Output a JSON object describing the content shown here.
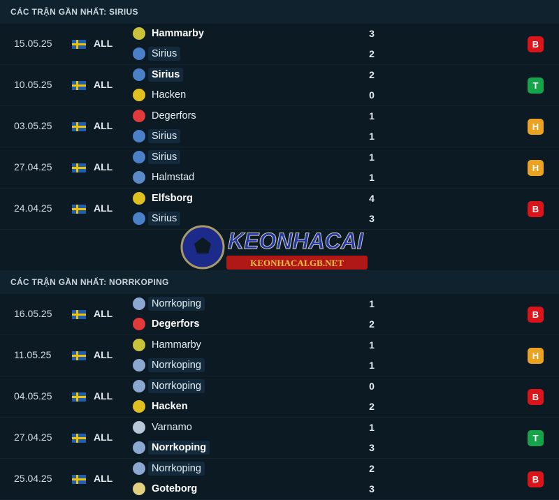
{
  "sections": [
    {
      "title": "CÁC TRẬN GẦN NHẤT: SIRIUS",
      "matches": [
        {
          "date": "15.05.25",
          "competition": "ALL",
          "home": {
            "name": "Hammarby",
            "logo": "#c9c23a",
            "bold": true,
            "hl": false
          },
          "away": {
            "name": "Sirius",
            "logo": "#4a80c8",
            "bold": false,
            "hl": true
          },
          "home_score": "3",
          "away_score": "2",
          "result": "B",
          "result_color": "#d9141b"
        },
        {
          "date": "10.05.25",
          "competition": "ALL",
          "home": {
            "name": "Sirius",
            "logo": "#4a80c8",
            "bold": true,
            "hl": true
          },
          "away": {
            "name": "Hacken",
            "logo": "#e0c020",
            "bold": false,
            "hl": false
          },
          "home_score": "2",
          "away_score": "0",
          "result": "T",
          "result_color": "#15a449"
        },
        {
          "date": "03.05.25",
          "competition": "ALL",
          "home": {
            "name": "Degerfors",
            "logo": "#e03a3a",
            "bold": false,
            "hl": false
          },
          "away": {
            "name": "Sirius",
            "logo": "#4a80c8",
            "bold": false,
            "hl": true
          },
          "home_score": "1",
          "away_score": "1",
          "result": "H",
          "result_color": "#e9a320"
        },
        {
          "date": "27.04.25",
          "competition": "ALL",
          "home": {
            "name": "Sirius",
            "logo": "#4a80c8",
            "bold": false,
            "hl": true
          },
          "away": {
            "name": "Halmstad",
            "logo": "#5a8ac8",
            "bold": false,
            "hl": false
          },
          "home_score": "1",
          "away_score": "1",
          "result": "H",
          "result_color": "#e9a320"
        },
        {
          "date": "24.04.25",
          "competition": "ALL",
          "home": {
            "name": "Elfsborg",
            "logo": "#e0c020",
            "bold": true,
            "hl": false
          },
          "away": {
            "name": "Sirius",
            "logo": "#4a80c8",
            "bold": false,
            "hl": true
          },
          "home_score": "4",
          "away_score": "3",
          "result": "B",
          "result_color": "#d9141b"
        }
      ]
    },
    {
      "title": "CÁC TRẬN GẦN NHẤT: NORRKOPING",
      "matches": [
        {
          "date": "16.05.25",
          "competition": "ALL",
          "home": {
            "name": "Norrkoping",
            "logo": "#8aa8d0",
            "bold": false,
            "hl": true
          },
          "away": {
            "name": "Degerfors",
            "logo": "#e03a3a",
            "bold": true,
            "hl": false
          },
          "home_score": "1",
          "away_score": "2",
          "result": "B",
          "result_color": "#d9141b"
        },
        {
          "date": "11.05.25",
          "competition": "ALL",
          "home": {
            "name": "Hammarby",
            "logo": "#c9c23a",
            "bold": false,
            "hl": false
          },
          "away": {
            "name": "Norrkoping",
            "logo": "#8aa8d0",
            "bold": false,
            "hl": true
          },
          "home_score": "1",
          "away_score": "1",
          "result": "H",
          "result_color": "#e9a320"
        },
        {
          "date": "04.05.25",
          "competition": "ALL",
          "home": {
            "name": "Norrkoping",
            "logo": "#8aa8d0",
            "bold": false,
            "hl": true
          },
          "away": {
            "name": "Hacken",
            "logo": "#e0c020",
            "bold": true,
            "hl": false
          },
          "home_score": "0",
          "away_score": "2",
          "result": "B",
          "result_color": "#d9141b"
        },
        {
          "date": "27.04.25",
          "competition": "ALL",
          "home": {
            "name": "Varnamo",
            "logo": "#b8c8d8",
            "bold": false,
            "hl": false
          },
          "away": {
            "name": "Norrkoping",
            "logo": "#8aa8d0",
            "bold": true,
            "hl": true
          },
          "home_score": "1",
          "away_score": "3",
          "result": "T",
          "result_color": "#15a449"
        },
        {
          "date": "25.04.25",
          "competition": "ALL",
          "home": {
            "name": "Norrkoping",
            "logo": "#8aa8d0",
            "bold": false,
            "hl": true
          },
          "away": {
            "name": "Goteborg",
            "logo": "#e0d080",
            "bold": true,
            "hl": false
          },
          "home_score": "2",
          "away_score": "3",
          "result": "B",
          "result_color": "#d9141b"
        }
      ]
    }
  ],
  "watermark": {
    "brand": "KEONHACAI",
    "url": "KEONHACAI.GB.NET"
  }
}
